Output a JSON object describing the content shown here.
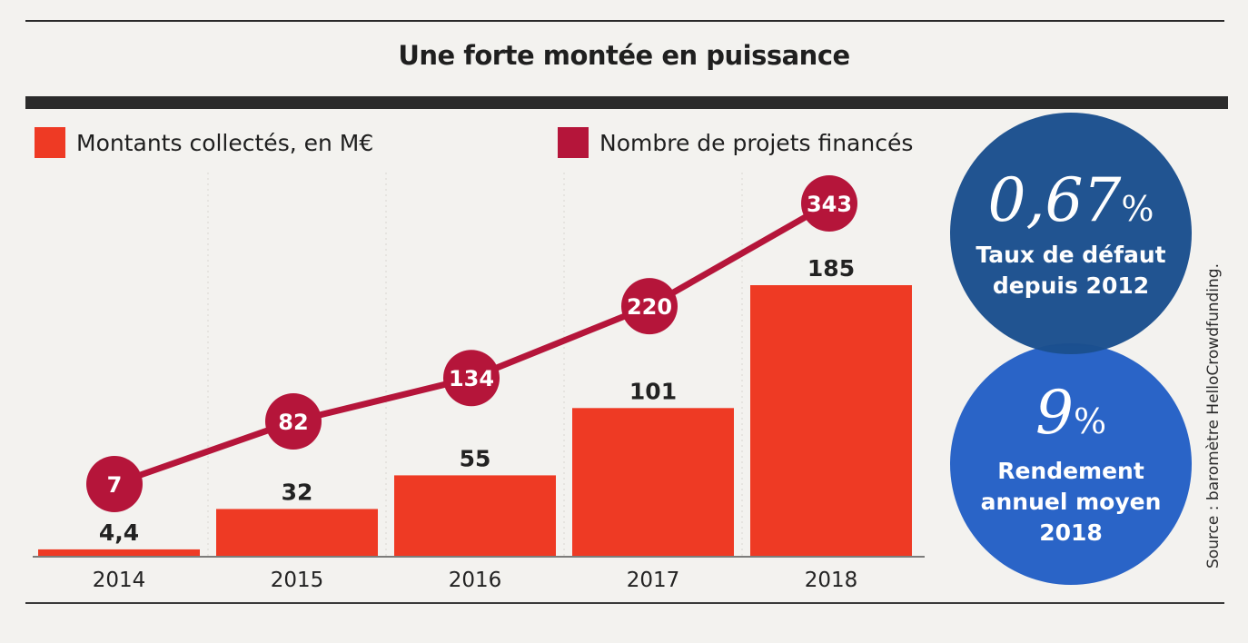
{
  "chart_data": {
    "type": "bar",
    "title": "Une forte montée en puissance",
    "categories": [
      "2014",
      "2015",
      "2016",
      "2017",
      "2018"
    ],
    "series": [
      {
        "name": "Montants collectés, en M€",
        "type": "bar",
        "values": [
          4.4,
          32,
          55,
          101,
          185
        ],
        "labels": [
          "4,4",
          "32",
          "55",
          "101",
          "185"
        ],
        "color": "#ee3a24"
      },
      {
        "name": "Nombre de projets financés",
        "type": "line",
        "values": [
          7,
          82,
          134,
          220,
          343
        ],
        "labels": [
          "7",
          "82",
          "134",
          "220",
          "343"
        ],
        "color": "#b5153a"
      }
    ],
    "legend_position": "top-left",
    "grid": false
  },
  "stats": [
    {
      "value": "0,67",
      "unit": "%",
      "label_lines": [
        "Taux de défaut",
        "depuis 2012"
      ],
      "color": "#1b4f8e"
    },
    {
      "value": "9",
      "unit": "%",
      "label_lines": [
        "Rendement",
        "annuel moyen",
        "2018"
      ],
      "color": "#2a64c7"
    }
  ],
  "source": "Source : baromètre HelloCrowdfunding."
}
